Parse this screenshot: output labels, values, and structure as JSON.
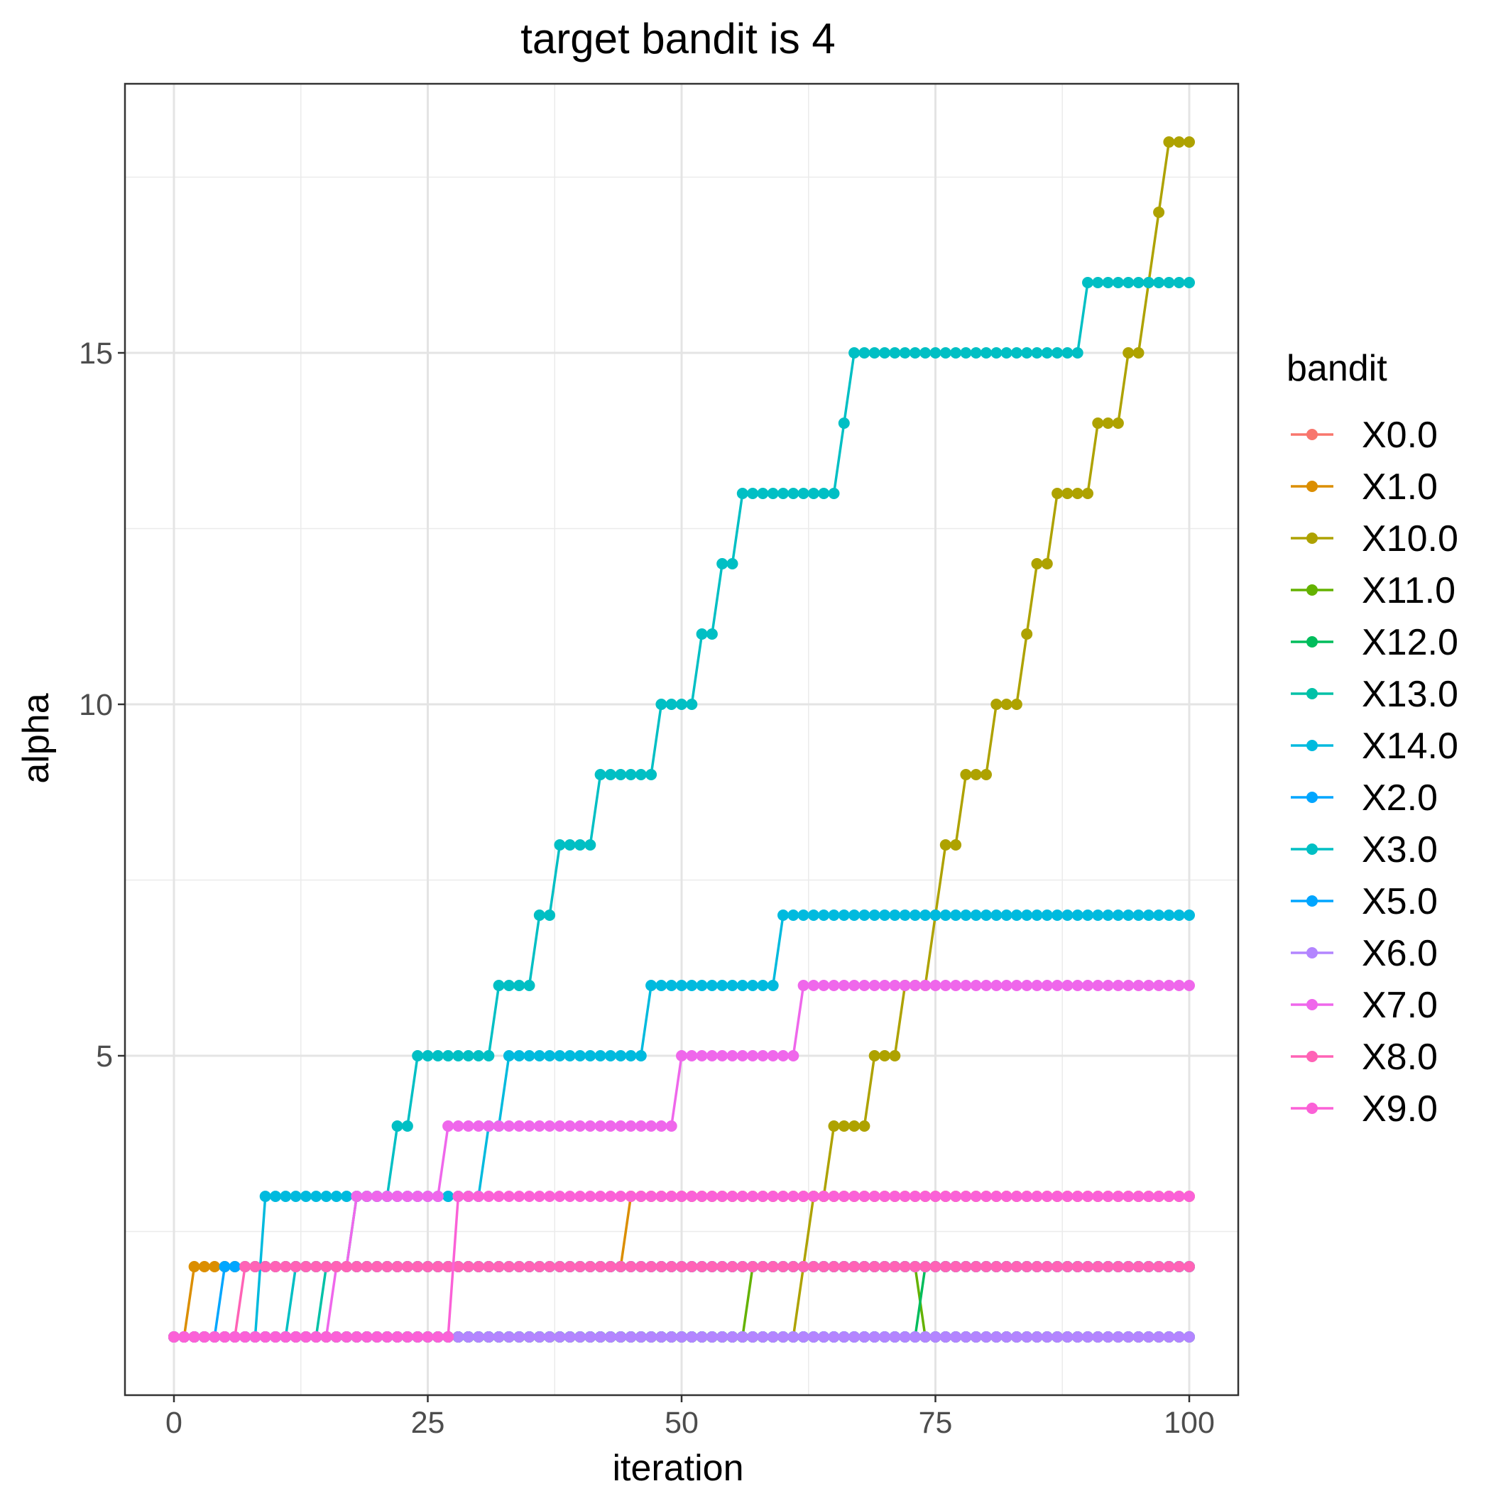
{
  "chart_data": {
    "type": "line",
    "title": "target bandit is 4",
    "xlabel": "iteration",
    "ylabel": "alpha",
    "xlim": [
      -7,
      150
    ],
    "ylim": [
      0.25,
      19.1
    ],
    "x_ticks": [
      0,
      25,
      50,
      75,
      100
    ],
    "y_ticks": [
      5,
      10,
      15
    ],
    "grid": true,
    "legend": {
      "title": "bandit",
      "position": "right"
    },
    "series": [
      {
        "name": "X0.0",
        "color": "#F8766D",
        "change_points": [
          [
            0,
            1
          ]
        ]
      },
      {
        "name": "X1.0",
        "color": "#DB8E00",
        "change_points": [
          [
            0,
            1
          ],
          [
            2,
            2
          ],
          [
            45,
            3
          ]
        ]
      },
      {
        "name": "X10.0",
        "color": "#AEA200",
        "change_points": [
          [
            0,
            1
          ],
          [
            62,
            2
          ],
          [
            63,
            3
          ],
          [
            65,
            4
          ],
          [
            69,
            5
          ],
          [
            72,
            6
          ],
          [
            75,
            7
          ],
          [
            76,
            8
          ],
          [
            78,
            9
          ],
          [
            81,
            10
          ],
          [
            84,
            11
          ],
          [
            85,
            12
          ],
          [
            87,
            13
          ],
          [
            91,
            14
          ],
          [
            94,
            15
          ],
          [
            96,
            16
          ],
          [
            97,
            17
          ],
          [
            98,
            18
          ]
        ]
      },
      {
        "name": "X11.0",
        "color": "#64B200",
        "change_points": [
          [
            0,
            1
          ],
          [
            57,
            2
          ],
          [
            74,
            1
          ]
        ]
      },
      {
        "name": "X12.0",
        "color": "#00BD5C",
        "change_points": [
          [
            0,
            1
          ],
          [
            74,
            2
          ]
        ]
      },
      {
        "name": "X13.0",
        "color": "#00C1A7",
        "change_points": [
          [
            0,
            1
          ],
          [
            15,
            2
          ]
        ]
      },
      {
        "name": "X14.0",
        "color": "#00BADE",
        "change_points": [
          [
            0,
            1
          ],
          [
            9,
            3
          ],
          [
            31,
            4
          ],
          [
            33,
            5
          ],
          [
            47,
            6
          ],
          [
            60,
            7
          ]
        ]
      },
      {
        "name": "X2.0",
        "color": "#00A6FF",
        "change_points": [
          [
            0,
            1
          ],
          [
            5,
            2
          ]
        ]
      },
      {
        "name": "X3.0",
        "color": "#00BFC4",
        "change_points": [
          [
            0,
            1
          ],
          [
            12,
            2
          ],
          [
            18,
            3
          ],
          [
            22,
            4
          ],
          [
            24,
            5
          ],
          [
            32,
            6
          ],
          [
            36,
            7
          ],
          [
            38,
            8
          ],
          [
            42,
            9
          ],
          [
            48,
            10
          ],
          [
            52,
            11
          ],
          [
            54,
            12
          ],
          [
            56,
            13
          ],
          [
            66,
            14
          ],
          [
            67,
            15
          ],
          [
            90,
            16
          ]
        ]
      },
      {
        "name": "X5.0",
        "color": "#00A5FF",
        "change_points": [
          [
            0,
            1
          ]
        ]
      },
      {
        "name": "X6.0",
        "color": "#B385FF",
        "change_points": [
          [
            0,
            1
          ]
        ]
      },
      {
        "name": "X7.0",
        "color": "#EF67EB",
        "change_points": [
          [
            0,
            1
          ],
          [
            16,
            2
          ],
          [
            18,
            3
          ],
          [
            27,
            4
          ],
          [
            50,
            5
          ],
          [
            62,
            6
          ]
        ]
      },
      {
        "name": "X8.0",
        "color": "#FF63B6",
        "change_points": [
          [
            0,
            1
          ],
          [
            7,
            2
          ]
        ]
      },
      {
        "name": "X9.0",
        "color": "#FB61D7",
        "change_points": [
          [
            0,
            1
          ],
          [
            28,
            3
          ]
        ]
      }
    ]
  }
}
